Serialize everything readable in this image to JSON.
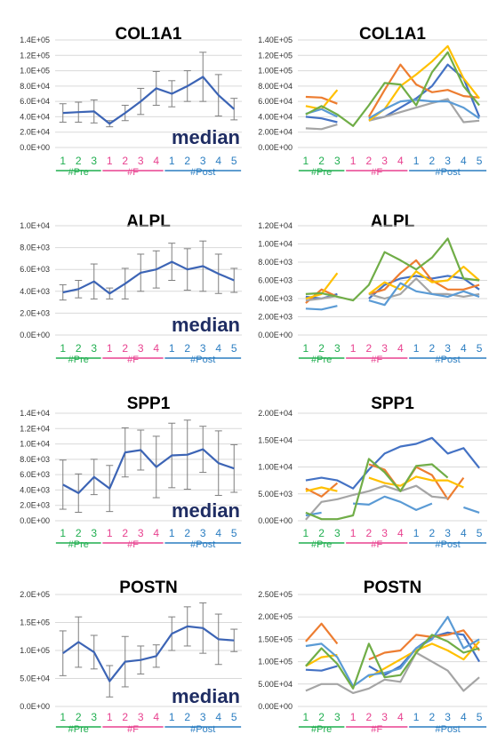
{
  "colors": {
    "pre": "#1fae4f",
    "f": "#e8418f",
    "post": "#2a7dc1",
    "median_line": "#3c64b5",
    "median_text": "#1f2d63",
    "error_bar": "#7f7f7f",
    "grid": "#d9d9d9"
  },
  "groups": [
    {
      "label": "#Pre",
      "ticks": [
        "1",
        "2",
        "3"
      ],
      "color_key": "pre"
    },
    {
      "label": "#F",
      "ticks": [
        "1",
        "2",
        "3",
        "4"
      ],
      "color_key": "f"
    },
    {
      "label": "#Post",
      "ticks": [
        "1",
        "2",
        "3",
        "4",
        "5"
      ],
      "color_key": "post"
    }
  ],
  "median_label": "median",
  "chart_data": [
    {
      "type": "line",
      "title": "COL1A1",
      "variant": "median",
      "ylim": [
        0,
        140000
      ],
      "ytick_labels": [
        "0.0E+00",
        "2.0E+04",
        "4.0E+04",
        "6.0E+04",
        "8.0E+04",
        "1.0E+05",
        "1.2E+05",
        "1.4E+05"
      ],
      "x": [
        1,
        2,
        3,
        4,
        5,
        6,
        7,
        8,
        9,
        10,
        11,
        12
      ],
      "values": [
        45000,
        46000,
        47000,
        31000,
        45000,
        60000,
        77000,
        70000,
        80000,
        92000,
        68000,
        50000
      ],
      "error": [
        12000,
        13000,
        15000,
        4000,
        10000,
        17000,
        22000,
        17000,
        20000,
        32000,
        27000,
        14000
      ],
      "grid": true
    },
    {
      "type": "line",
      "title": "COL1A1",
      "variant": "individual",
      "ylim": [
        0,
        140000
      ],
      "ytick_labels": [
        "0.00E+00",
        "2.00E+04",
        "4.00E+04",
        "6.00E+04",
        "8.00E+04",
        "1.00E+05",
        "1.20E+05",
        "1.40E+05"
      ],
      "series": [
        {
          "color": "#4472c4",
          "values": [
            40000,
            38000,
            33000,
            null,
            36000,
            40000,
            52000,
            64000,
            80000,
            108000,
            90000,
            40000
          ]
        },
        {
          "color": "#ed7d31",
          "values": [
            66000,
            65000,
            57000,
            null,
            40000,
            75000,
            108000,
            82000,
            72000,
            75000,
            67000,
            65000
          ]
        },
        {
          "color": "#a5a5a5",
          "values": [
            25000,
            24000,
            30000,
            null,
            35000,
            40000,
            46000,
            52000,
            58000,
            63000,
            33000,
            35000
          ]
        },
        {
          "color": "#ffc000",
          "values": [
            54000,
            50000,
            75000,
            null,
            35000,
            50000,
            80000,
            95000,
            112000,
            132000,
            90000,
            64000
          ]
        },
        {
          "color": "#5b9bd5",
          "values": [
            44000,
            50000,
            40000,
            null,
            38000,
            50000,
            60000,
            62000,
            60000,
            60000,
            52000,
            38000
          ]
        },
        {
          "color": "#70ad47",
          "values": [
            43000,
            54000,
            43000,
            28000,
            55000,
            84000,
            82000,
            55000,
            98000,
            124000,
            80000,
            55000
          ]
        }
      ],
      "grid": true
    },
    {
      "type": "line",
      "title": "ALPL",
      "variant": "median",
      "ylim": [
        0,
        10000
      ],
      "ytick_labels": [
        "0.0E+00",
        "2.0E+03",
        "4.0E+03",
        "6.0E+03",
        "8.0E+03",
        "1.0E+04"
      ],
      "x": [
        1,
        2,
        3,
        4,
        5,
        6,
        7,
        8,
        9,
        10,
        11,
        12
      ],
      "values": [
        3900,
        4200,
        4900,
        3800,
        4700,
        5700,
        6000,
        6700,
        6000,
        6300,
        5600,
        5000
      ],
      "error": [
        700,
        800,
        1600,
        500,
        1400,
        1700,
        1700,
        1700,
        1900,
        2300,
        1800,
        1100
      ],
      "grid": true
    },
    {
      "type": "line",
      "title": "ALPL",
      "variant": "individual",
      "ylim": [
        0,
        12000
      ],
      "ytick_labels": [
        "0.00E+00",
        "2.00E+03",
        "4.00E+03",
        "6.00E+03",
        "8.00E+03",
        "1.00E+04",
        "1.20E+04"
      ],
      "series": [
        {
          "color": "#4472c4",
          "values": [
            4200,
            4000,
            4500,
            null,
            4000,
            5500,
            6200,
            6500,
            6200,
            6500,
            6200,
            5000
          ]
        },
        {
          "color": "#ed7d31",
          "values": [
            3500,
            5000,
            4200,
            null,
            4500,
            5000,
            6800,
            8200,
            6000,
            5000,
            5000,
            5500
          ]
        },
        {
          "color": "#a5a5a5",
          "values": [
            3800,
            4000,
            4300,
            null,
            4500,
            4000,
            4500,
            6200,
            4500,
            4500,
            4200,
            4500
          ]
        },
        {
          "color": "#ffc000",
          "values": [
            4000,
            4500,
            6800,
            null,
            4500,
            5800,
            5000,
            7000,
            5800,
            6000,
            7500,
            6000
          ]
        },
        {
          "color": "#5b9bd5",
          "values": [
            2900,
            2800,
            3200,
            null,
            3800,
            3300,
            5700,
            4800,
            4500,
            4200,
            4800,
            4200
          ]
        },
        {
          "color": "#70ad47",
          "values": [
            4500,
            4600,
            4200,
            3800,
            5500,
            9100,
            8200,
            7200,
            8500,
            10600,
            6200,
            6000
          ]
        }
      ],
      "grid": true
    },
    {
      "type": "line",
      "title": "SPP1",
      "variant": "median",
      "ylim": [
        0,
        14000
      ],
      "ytick_labels": [
        "0.0E+00",
        "2.0E+03",
        "4.0E+03",
        "6.0E+03",
        "8.0E+03",
        "1.0E+04",
        "1.2E+04",
        "1.4E+04"
      ],
      "x": [
        1,
        2,
        3,
        4,
        5,
        6,
        7,
        8,
        9,
        10,
        11,
        12
      ],
      "values": [
        4700,
        3600,
        5700,
        4200,
        8900,
        9200,
        7000,
        8500,
        8600,
        9300,
        7500,
        6800
      ],
      "error": [
        3200,
        2500,
        2300,
        3000,
        3200,
        2600,
        4000,
        4200,
        4500,
        3000,
        4200,
        3100
      ],
      "grid": true
    },
    {
      "type": "line",
      "title": "SPP1",
      "variant": "individual",
      "ylim": [
        0,
        20000
      ],
      "ytick_labels": [
        "0.00E+00",
        "5.00E+03",
        "1.00E+04",
        "1.50E+04",
        "2.00E+04"
      ],
      "series": [
        {
          "color": "#4472c4",
          "values": [
            7500,
            8000,
            7500,
            6000,
            9500,
            12500,
            13800,
            14300,
            15400,
            12500,
            13500,
            9800
          ]
        },
        {
          "color": "#ed7d31",
          "values": [
            6000,
            4500,
            7000,
            null,
            10500,
            9500,
            5500,
            10000,
            8500,
            4000,
            8000,
            null
          ]
        },
        {
          "color": "#a5a5a5",
          "values": [
            200,
            3500,
            4000,
            4800,
            5500,
            6500,
            5500,
            6500,
            4500,
            4200,
            null,
            null
          ]
        },
        {
          "color": "#ffc000",
          "values": [
            5500,
            6200,
            5500,
            null,
            8000,
            7000,
            6500,
            8200,
            7500,
            7500,
            6200,
            null
          ]
        },
        {
          "color": "#5b9bd5",
          "values": [
            1000,
            1500,
            null,
            3200,
            3000,
            4500,
            3500,
            2000,
            3200,
            null,
            2500,
            1500
          ]
        },
        {
          "color": "#70ad47",
          "values": [
            1500,
            300,
            300,
            1000,
            11500,
            9000,
            5500,
            10200,
            10500,
            8000,
            null,
            null
          ]
        }
      ],
      "grid": true
    },
    {
      "type": "line",
      "title": "POSTN",
      "variant": "median",
      "ylim": [
        0,
        200000
      ],
      "ytick_labels": [
        "0.0E+00",
        "5.0E+04",
        "1.0E+05",
        "1.5E+05",
        "2.0E+05"
      ],
      "x": [
        1,
        2,
        3,
        4,
        5,
        6,
        7,
        8,
        9,
        10,
        11,
        12
      ],
      "values": [
        95000,
        115000,
        97000,
        45000,
        80000,
        83000,
        90000,
        130000,
        143000,
        140000,
        120000,
        118000
      ],
      "error": [
        40000,
        45000,
        30000,
        28000,
        45000,
        25000,
        20000,
        30000,
        35000,
        45000,
        45000,
        20000
      ],
      "grid": true
    },
    {
      "type": "line",
      "title": "POSTN",
      "variant": "individual",
      "ylim": [
        0,
        250000
      ],
      "ytick_labels": [
        "0.00E+00",
        "5.00E+04",
        "1.00E+05",
        "1.50E+05",
        "2.00E+05",
        "2.50E+05"
      ],
      "series": [
        {
          "color": "#4472c4",
          "values": [
            82000,
            80000,
            90000,
            null,
            90000,
            70000,
            90000,
            130000,
            155000,
            165000,
            160000,
            100000
          ]
        },
        {
          "color": "#ed7d31",
          "values": [
            145000,
            185000,
            140000,
            null,
            105000,
            120000,
            125000,
            160000,
            155000,
            160000,
            170000,
            125000
          ]
        },
        {
          "color": "#a5a5a5",
          "values": [
            35000,
            50000,
            50000,
            30000,
            40000,
            60000,
            55000,
            120000,
            100000,
            80000,
            35000,
            65000
          ]
        },
        {
          "color": "#ffc000",
          "values": [
            90000,
            110000,
            115000,
            null,
            65000,
            85000,
            105000,
            125000,
            140000,
            125000,
            105000,
            145000
          ]
        },
        {
          "color": "#5b9bd5",
          "values": [
            135000,
            140000,
            110000,
            45000,
            70000,
            75000,
            85000,
            130000,
            150000,
            200000,
            130000,
            150000
          ]
        },
        {
          "color": "#70ad47",
          "values": [
            90000,
            130000,
            95000,
            40000,
            140000,
            65000,
            70000,
            120000,
            160000,
            145000,
            120000,
            130000
          ]
        }
      ],
      "grid": true
    }
  ]
}
